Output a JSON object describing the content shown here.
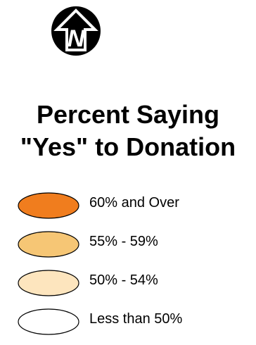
{
  "north_arrow": {
    "icon": "north-arrow-icon",
    "letter": "N"
  },
  "title": {
    "line1": "Percent Saying",
    "line2": "\"Yes\" to Donation"
  },
  "legend": {
    "items": [
      {
        "label": "60% and Over",
        "color": "#f07d1e"
      },
      {
        "label": "55% - 59%",
        "color": "#f6c675"
      },
      {
        "label": "50% - 54%",
        "color": "#fde5be"
      },
      {
        "label": "Less than 50%",
        "color": "#ffffff"
      }
    ]
  }
}
